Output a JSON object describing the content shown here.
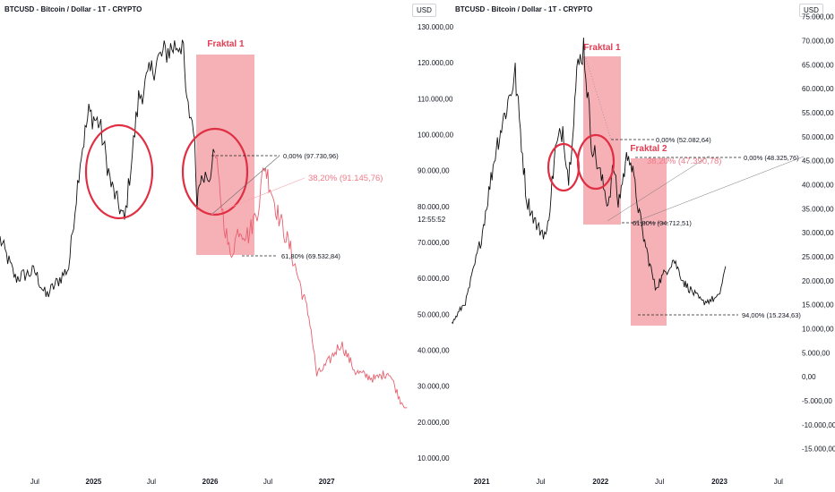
{
  "colors": {
    "price_line": "#111111",
    "projection_line": "#e8606f",
    "fractal_box": "#f5a3aa",
    "circle": "#e02e42",
    "fib_red_text": "#f07a88",
    "grid_text": "#131722"
  },
  "left": {
    "symbol": "BTCUSD - Bitcoin / Dollar - 1T - CRYPTO",
    "currency": "USD",
    "clock": "12:55:52",
    "fractal_label": "Fraktal 1",
    "fib_top": "0,00% (97.730,96)",
    "fib_mid": "38,20% (91.145,76)",
    "fib_bottom": "61,80% (69.532,84)"
  },
  "right": {
    "symbol": "BTCUSD - Bitcoin / Dollar - 1T - CRYPTO",
    "currency": "USD",
    "fractal1_label": "Fraktal 1",
    "fractal2_label": "Fraktal 2",
    "fib_top_a": "0,00% (52.082,64)",
    "fib_red": "38,20% (47.390,78)",
    "fib_top_b": "0,00% (48.325,76)",
    "fib_618": "61,80% (34.712,51)",
    "fib_94": "94,00% (15.234,63)"
  },
  "chart_data": [
    {
      "type": "line",
      "title": "BTCUSD - Bitcoin / Dollar - 1T - CRYPTO",
      "ylabel": "USD",
      "ylim": [
        10000,
        135000
      ],
      "y_ticks": [
        "130.000,00",
        "120.000,00",
        "110.000,00",
        "100.000,00",
        "90.000,00",
        "80.000,00",
        "70.000,00",
        "60.000,00",
        "50.000,00",
        "40.000,00",
        "30.000,00",
        "20.000,00",
        "10.000,00"
      ],
      "x_ticks": [
        "Jul",
        "2025",
        "Jul",
        "2026",
        "Jul",
        "2027"
      ],
      "series": [
        {
          "style": "price",
          "x": [
            "2024-03-14",
            "2024-05-01",
            "2024-07-01",
            "2024-08-05",
            "2024-10-15",
            "2024-11-20",
            "2024-12-17",
            "2025-01-20",
            "2025-02-25",
            "2025-04-08",
            "2025-05-22",
            "2025-07-14",
            "2025-08-14",
            "2025-10-06",
            "2025-10-20",
            "2025-11-10",
            "2025-11-21",
            "2025-12-05",
            "2025-12-25",
            "2026-01-15"
          ],
          "values": [
            71000,
            60000,
            62000,
            55000,
            63000,
            93000,
            106000,
            103000,
            86000,
            76000,
            110000,
            120000,
            123000,
            126000,
            108000,
            103000,
            82000,
            91000,
            86000,
            95000
          ]
        },
        {
          "style": "projection",
          "x": [
            "2026-01-15",
            "2026-02-10",
            "2026-03-05",
            "2026-04-01",
            "2026-05-01",
            "2026-06-01",
            "2026-06-20",
            "2026-08-01",
            "2026-09-10",
            "2026-10-20",
            "2026-11-10",
            "2026-12-01",
            "2027-01-01",
            "2027-02-15",
            "2027-04-01",
            "2027-06-01",
            "2027-07-15",
            "2027-08-20",
            "2027-09-10"
          ],
          "values": [
            95000,
            78000,
            66000,
            74000,
            72000,
            80000,
            92000,
            78000,
            68000,
            55000,
            48000,
            33000,
            36000,
            42000,
            34000,
            32000,
            34000,
            26000,
            24000
          ]
        }
      ],
      "annotations": [
        "Fraktal 1",
        "0,00% (97.730,96)",
        "38,20% (91.145,76)",
        "61,80% (69.532,84)",
        "12:55:52"
      ]
    },
    {
      "type": "line",
      "title": "BTCUSD - Bitcoin / Dollar - 1T - CRYPTO",
      "ylabel": "USD",
      "ylim": [
        -17500,
        77000
      ],
      "y_ticks": [
        "75.000,00",
        "70.000,00",
        "65.000,00",
        "60.000,00",
        "55.000,00",
        "50.000,00",
        "45.000,00",
        "40.000,00",
        "35.000,00",
        "30.000,00",
        "25.000,00",
        "20.000,00",
        "15.000,00",
        "10.000,00",
        "5.000,00",
        "0,00",
        "-5.000,00",
        "-10.000,00",
        "-15.000,00"
      ],
      "x_ticks": [
        "2021",
        "Jul",
        "2022",
        "Jul",
        "2023",
        "Jul"
      ],
      "series": [
        {
          "style": "price",
          "x": [
            "2020-10-01",
            "2020-11-15",
            "2020-12-31",
            "2021-02-15",
            "2021-04-14",
            "2021-05-19",
            "2021-06-22",
            "2021-07-20",
            "2021-08-15",
            "2021-09-07",
            "2021-09-25",
            "2021-10-20",
            "2021-11-10",
            "2021-12-04",
            "2022-01-24",
            "2022-02-10",
            "2022-02-24",
            "2022-03-28",
            "2022-05-10",
            "2022-06-18",
            "2022-08-13",
            "2022-09-15",
            "2022-11-09",
            "2022-12-30",
            "2023-01-20"
          ],
          "values": [
            11000,
            16000,
            29000,
            48000,
            63000,
            37000,
            31000,
            29500,
            47000,
            52000,
            41000,
            63000,
            69000,
            49000,
            36000,
            44000,
            36000,
            47500,
            30000,
            18500,
            24500,
            19500,
            15500,
            16500,
            23000
          ]
        }
      ],
      "annotations": [
        "Fraktal 1",
        "Fraktal 2",
        "0,00% (52.082,64)",
        "38,20% (47.390,78)",
        "0,00% (48.325,76)",
        "61,80% (34.712,51)",
        "94,00% (15.234,63)"
      ]
    }
  ]
}
